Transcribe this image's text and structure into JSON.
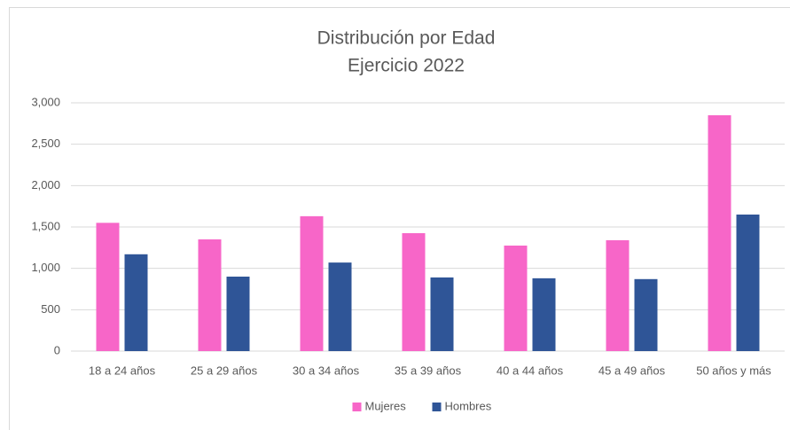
{
  "chart_data": {
    "type": "bar",
    "title": "Distribución por Edad",
    "subtitle": "Ejercicio 2022",
    "categories": [
      "18 a 24 años",
      "25 a 29 años",
      "30 a 34 años",
      "35 a 39 años",
      "40 a 44 años",
      "45 a 49 años",
      "50 años y más"
    ],
    "series": [
      {
        "name": "Mujeres",
        "color": "#f766c8",
        "values": [
          1550,
          1350,
          1630,
          1425,
          1275,
          1340,
          2850
        ]
      },
      {
        "name": "Hombres",
        "color": "#2f5597",
        "values": [
          1170,
          900,
          1070,
          890,
          880,
          870,
          1650
        ]
      }
    ],
    "ylim": [
      0,
      3000
    ],
    "yticks": [
      0,
      500,
      {
        "value": 1000,
        "label": "1,000"
      },
      {
        "value": 1500,
        "label": "1,500"
      },
      {
        "value": 2000,
        "label": "2,000"
      },
      {
        "value": 2500,
        "label": "2,500"
      },
      {
        "value": 3000,
        "label": "3,000"
      }
    ],
    "grid": true,
    "legend": "bottom"
  }
}
